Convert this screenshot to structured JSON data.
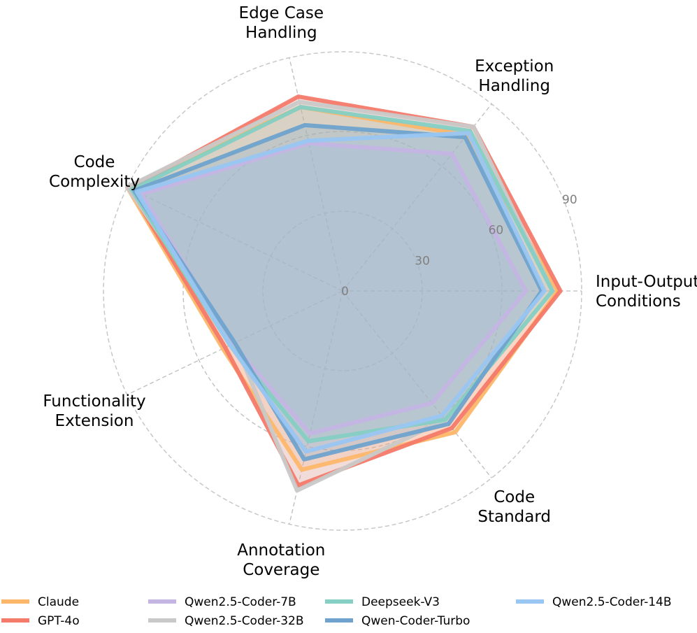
{
  "chart_data": {
    "type": "radar",
    "axes": [
      {
        "lines": [
          "Input-Output",
          "Conditions"
        ]
      },
      {
        "lines": [
          "Exception",
          "Handling"
        ]
      },
      {
        "lines": [
          "Edge Case",
          "Handling"
        ]
      },
      {
        "lines": [
          "Code",
          "Complexity"
        ]
      },
      {
        "lines": [
          "Functionality",
          "Extension"
        ]
      },
      {
        "lines": [
          "Annotation",
          "Coverage"
        ]
      },
      {
        "lines": [
          "Code",
          "Standard"
        ]
      }
    ],
    "rticks": [
      {
        "value": 0,
        "label": "0"
      },
      {
        "value": 30,
        "label": "30"
      },
      {
        "value": 60,
        "label": "60"
      },
      {
        "value": 90,
        "label": "90"
      }
    ],
    "rmax": 90,
    "series": [
      {
        "name": "Claude",
        "color": "#FDB76A",
        "values": [
          81,
          75,
          71,
          90,
          50,
          69,
          68
        ]
      },
      {
        "name": "GPT-4o",
        "color": "#F47A6A",
        "values": [
          82,
          79,
          75,
          89,
          49,
          75,
          66
        ]
      },
      {
        "name": "Qwen2.5-Coder-7B",
        "color": "#C4B5E3",
        "values": [
          69,
          66,
          57,
          84,
          46,
          55,
          54
        ]
      },
      {
        "name": "Qwen2.5-Coder-32B",
        "color": "#C9C9C9",
        "values": [
          79,
          79,
          73,
          90,
          45,
          77,
          62
        ]
      },
      {
        "name": "Deepseek-V3",
        "color": "#85CFC4",
        "values": [
          79,
          77,
          71,
          88,
          47,
          58,
          62
        ]
      },
      {
        "name": "Qwen-Coder-Turbo",
        "color": "#6FA3CE",
        "values": [
          75,
          74,
          64,
          87,
          45,
          65,
          64
        ]
      },
      {
        "name": "Qwen2.5-Coder-14B",
        "color": "#99C6F2",
        "values": [
          76,
          76,
          58,
          86,
          47,
          62,
          60
        ]
      }
    ],
    "legend_position": "bottom",
    "grid": true
  }
}
